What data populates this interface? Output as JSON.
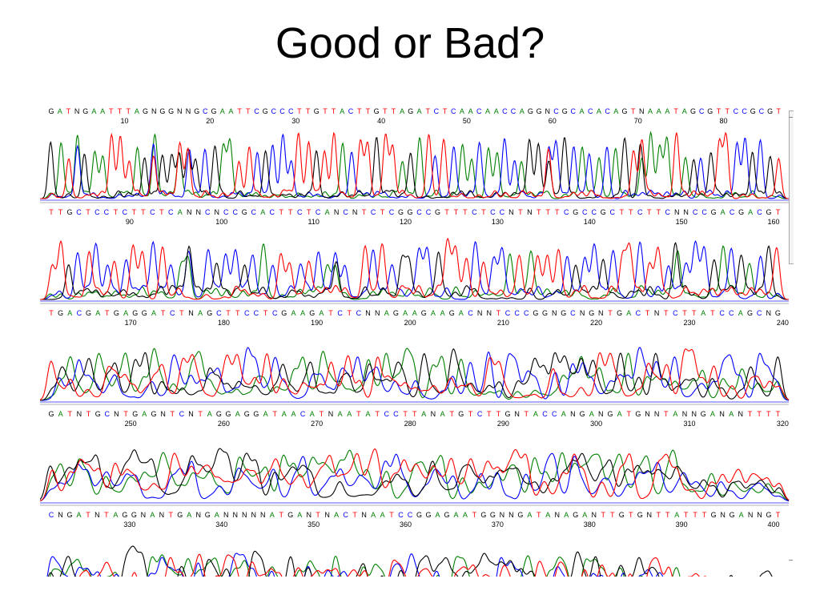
{
  "title": "Good or Bad?",
  "colors": {
    "A": "#008000",
    "C": "#0000ff",
    "G": "#000000",
    "T": "#ff0000",
    "N": "#000000"
  },
  "rows": [
    {
      "seq": "GATNGAATTTAGNGGNNGCGAATTCGCCCTTGTTACTTGTTAGATCTCAACAACCAGGNCGCACACAGTNAAATAGCGTTCCGCGT",
      "ticks": [
        "10",
        "20",
        "30",
        "40",
        "50",
        "60",
        "70",
        "80"
      ],
      "quality": "good"
    },
    {
      "seq": "TTGCTCCTCTTCTCANNCNCCGCACTTCTCANCNTCTCGGCCGTTTCTCCNTNTTTCGCCGCTTCTTCNNCCGACGACGT",
      "ticks": [
        "90",
        "100",
        "110",
        "120",
        "130",
        "140",
        "150",
        "160"
      ],
      "quality": "fair"
    },
    {
      "seq": "TGACGATGAGGATCTNAGCTTCCTCGAAGATCTCNNAGAAGAAGACNNTCCCGGNGCNGNTGACTNTCTTATCCAGCNG",
      "ticks": [
        "170",
        "180",
        "190",
        "200",
        "210",
        "220",
        "230",
        "240"
      ],
      "quality": "poor"
    },
    {
      "seq": "GATNTGCNTGAGNTCNTAGGAGGATAACATNAATATCCTTANATGTCTTGNTACCANGANGATGNNTANNGANANTTTT",
      "ticks": [
        "250",
        "260",
        "270",
        "280",
        "290",
        "300",
        "310",
        "320"
      ],
      "quality": "bad"
    },
    {
      "seq": "CNGATNTAGGNANTGANGANNNNNATGANTNACTNAATCCGGAGAATGGNNGATANAGANTTGTGNTTATTTGNGANNGT",
      "ticks": [
        "330",
        "340",
        "350",
        "360",
        "370",
        "380",
        "390",
        "400"
      ],
      "quality": "bad"
    }
  ]
}
